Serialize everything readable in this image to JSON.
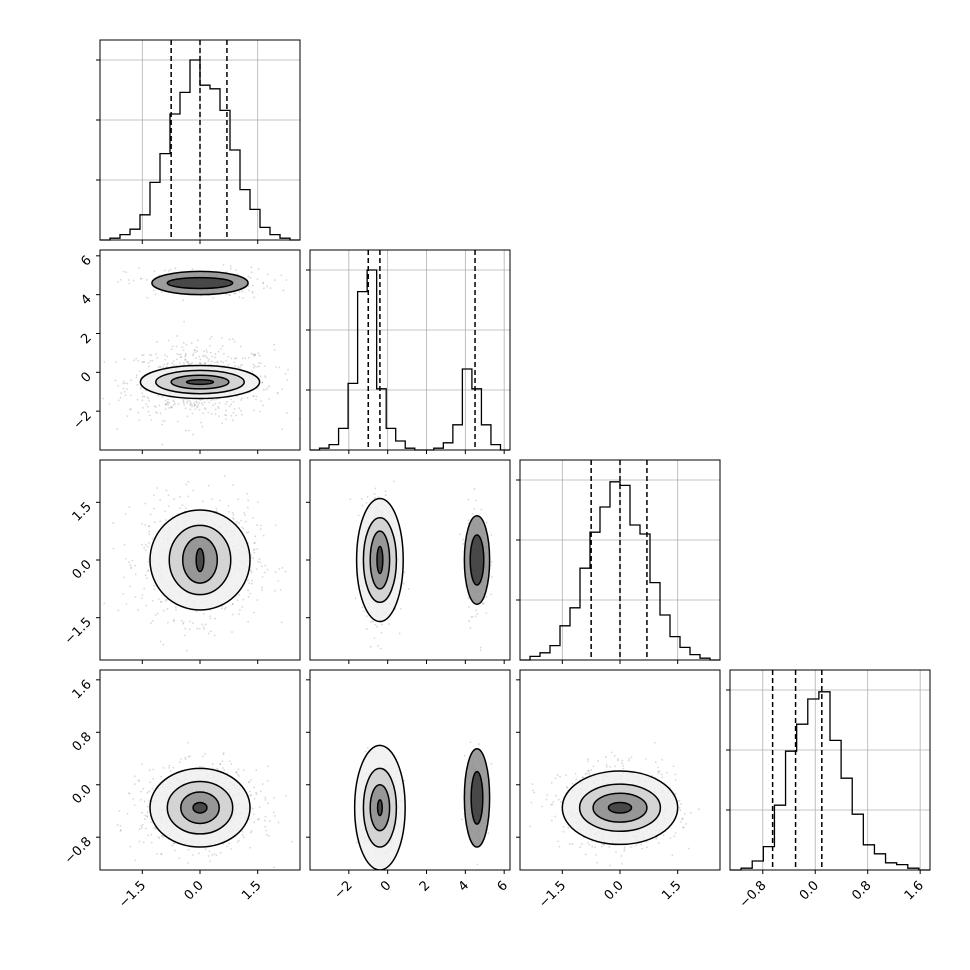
{
  "chart_data": {
    "type": "corner",
    "grid": true,
    "colors": {
      "line": "#000000",
      "grid": "#b0b0b0",
      "points": "#7f7f7f"
    },
    "parameters": [
      {
        "index": 0,
        "range": [
          -2.6,
          2.6
        ],
        "ticks": [
          -1.5,
          0.0,
          1.5
        ],
        "tick_labels": [
          "−1.5",
          "0.0",
          "1.5"
        ],
        "quantiles": [
          -0.75,
          0.0,
          0.7
        ]
      },
      {
        "index": 1,
        "range": [
          -4.0,
          6.3
        ],
        "ticks": [
          -2,
          0,
          2,
          4,
          6
        ],
        "tick_labels": [
          "−2",
          "0",
          "2",
          "4",
          "6"
        ],
        "quantiles": [
          -1.0,
          -0.4,
          4.5
        ]
      },
      {
        "index": 2,
        "range": [
          -2.6,
          2.6
        ],
        "ticks": [
          -1.5,
          0.0,
          1.5
        ],
        "tick_labels": [
          "−1.5",
          "0.0",
          "1.5"
        ],
        "quantiles": [
          -0.75,
          0.0,
          0.7
        ]
      },
      {
        "index": 3,
        "range": [
          -1.3,
          1.75
        ],
        "ticks": [
          -0.8,
          0.0,
          0.8,
          1.6
        ],
        "tick_labels": [
          "−0.8",
          "0.0",
          "0.8",
          "1.6"
        ],
        "quantiles": [
          -0.65,
          -0.3,
          0.1
        ]
      }
    ],
    "histograms": [
      {
        "param": 0,
        "values": [
          0.0,
          0.01,
          0.03,
          0.06,
          0.14,
          0.32,
          0.48,
          0.7,
          0.82,
          1.0,
          0.86,
          0.84,
          0.72,
          0.5,
          0.28,
          0.17,
          0.07,
          0.03,
          0.01,
          0.0
        ]
      },
      {
        "param": 1,
        "values": [
          0.0,
          0.01,
          0.03,
          0.12,
          0.37,
          0.88,
          1.0,
          0.34,
          0.12,
          0.05,
          0.01,
          0.0,
          0.0,
          0.01,
          0.04,
          0.14,
          0.45,
          0.34,
          0.14,
          0.03,
          0.0
        ]
      },
      {
        "param": 2,
        "values": [
          0.0,
          0.02,
          0.04,
          0.08,
          0.19,
          0.29,
          0.51,
          0.71,
          0.85,
          0.99,
          0.97,
          0.75,
          0.7,
          0.43,
          0.25,
          0.13,
          0.07,
          0.03,
          0.01,
          0.0
        ]
      },
      {
        "param": 3,
        "values": [
          0.0,
          0.01,
          0.05,
          0.13,
          0.36,
          0.66,
          0.81,
          0.95,
          0.99,
          0.72,
          0.51,
          0.31,
          0.14,
          0.09,
          0.04,
          0.03,
          0.01,
          0.0
        ]
      }
    ],
    "density_2d": [
      {
        "x": 0,
        "y": 1,
        "clusters": [
          {
            "center": [
              0.0,
              -0.5
            ],
            "sigma": [
              0.95,
              0.95
            ],
            "weight": 0.8,
            "contour_axes": [
              [
                0.35,
                0.12
              ],
              [
                0.75,
                0.35
              ],
              [
                1.15,
                0.6
              ],
              [
                1.55,
                0.85
              ]
            ]
          },
          {
            "center": [
              0.0,
              4.6
            ],
            "sigma": [
              0.95,
              0.4
            ],
            "weight": 0.2,
            "contour_axes": [
              [
                0.85,
                0.28
              ],
              [
                1.25,
                0.6
              ]
            ]
          }
        ]
      },
      {
        "x": 0,
        "y": 2,
        "clusters": [
          {
            "center": [
              0.0,
              0.0
            ],
            "sigma": [
              0.75,
              0.75
            ],
            "weight": 1.0,
            "contour_axes": [
              [
                0.1,
                0.3
              ],
              [
                0.45,
                0.6
              ],
              [
                0.8,
                0.9
              ],
              [
                1.3,
                1.3
              ]
            ]
          }
        ]
      },
      {
        "x": 1,
        "y": 2,
        "clusters": [
          {
            "center": [
              -0.4,
              0.0
            ],
            "sigma": [
              0.45,
              0.75
            ],
            "weight": 0.8,
            "contour_axes": [
              [
                0.15,
                0.35
              ],
              [
                0.5,
                0.75
              ],
              [
                0.85,
                1.1
              ],
              [
                1.2,
                1.6
              ]
            ]
          },
          {
            "center": [
              4.6,
              0.0
            ],
            "sigma": [
              0.3,
              0.75
            ],
            "weight": 0.2,
            "contour_axes": [
              [
                0.35,
                0.65
              ],
              [
                0.65,
                1.15
              ]
            ]
          }
        ]
      },
      {
        "x": 0,
        "y": 3,
        "clusters": [
          {
            "center": [
              0.0,
              -0.35
            ],
            "sigma": [
              0.75,
              0.3
            ],
            "weight": 1.0,
            "contour_axes": [
              [
                0.18,
                0.08
              ],
              [
                0.5,
                0.24
              ],
              [
                0.85,
                0.4
              ],
              [
                1.3,
                0.6
              ]
            ]
          }
        ]
      },
      {
        "x": 1,
        "y": 3,
        "clusters": [
          {
            "center": [
              -0.4,
              -0.35
            ],
            "sigma": [
              0.5,
              0.3
            ],
            "weight": 0.8,
            "contour_axes": [
              [
                0.12,
                0.12
              ],
              [
                0.5,
                0.35
              ],
              [
                0.85,
                0.6
              ],
              [
                1.3,
                0.95
              ]
            ]
          },
          {
            "center": [
              4.6,
              -0.2
            ],
            "sigma": [
              0.3,
              0.3
            ],
            "weight": 0.2,
            "contour_axes": [
              [
                0.3,
                0.4
              ],
              [
                0.65,
                0.75
              ]
            ]
          }
        ]
      },
      {
        "x": 2,
        "y": 3,
        "clusters": [
          {
            "center": [
              0.0,
              -0.35
            ],
            "sigma": [
              0.75,
              0.3
            ],
            "weight": 1.0,
            "contour_axes": [
              [
                0.3,
                0.08
              ],
              [
                0.7,
                0.22
              ],
              [
                1.05,
                0.36
              ],
              [
                1.5,
                0.56
              ]
            ]
          }
        ]
      }
    ]
  }
}
